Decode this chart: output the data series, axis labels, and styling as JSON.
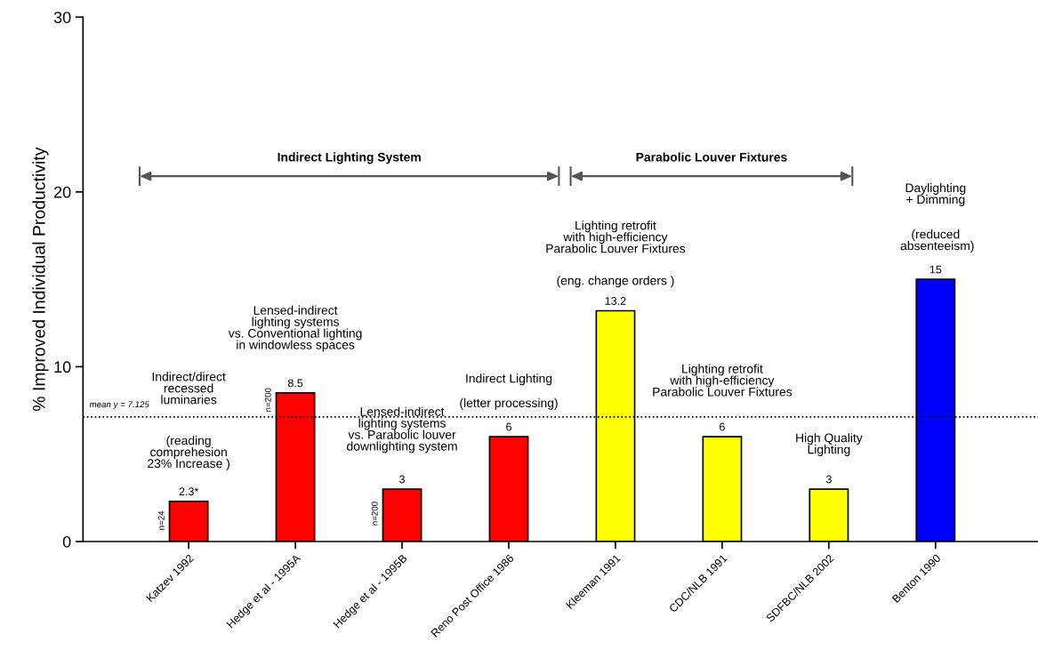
{
  "chart_data": {
    "type": "bar",
    "ylabel": "% Improved Individual Productivity",
    "categories": [
      "Katzev 1992",
      "Hedge et al - 1995A",
      "Hedge et al - 1995B",
      "Reno Post Office 1986",
      "Kleeman 1991",
      "CDC/NLB 1991",
      "SDFBC/NLB 2002",
      "Benton 1990"
    ],
    "values": [
      2.3,
      8.5,
      3,
      6,
      13.2,
      6,
      3,
      15
    ],
    "value_labels": [
      "2.3*",
      "8.5",
      "3",
      "6",
      "13.2",
      "6",
      "3",
      "15"
    ],
    "colors": [
      "#ff0000",
      "#ff0000",
      "#ff0000",
      "#ff0000",
      "#ffff00",
      "#ffff00",
      "#ffff00",
      "#0000ff"
    ],
    "ylim": [
      0,
      30
    ],
    "yticks": [
      0,
      10,
      20,
      30
    ],
    "ref_lines": [
      {
        "axis": "y",
        "value": 7.125,
        "label": "mean y = 7.125",
        "line_style": "dotted",
        "color": "#000000"
      }
    ],
    "annotations": [
      "Indirect Lighting System",
      "Parabolic Louver Fixtures",
      "Indirect/direct\nrecessed\nluminaries",
      "(reading\ncomprehesion\n23% Increase )",
      "n=24",
      "Lensed-indirect\nlighting systems\nvs. Conventional lighting\nin windowless spaces",
      "n=200",
      "Lensed-indirect\nlighting systems\nvs. Parabolic louver\ndownlighting system",
      "n=200",
      "Indirect Lighting",
      "(letter processing)",
      "Lighting retrofit\nwith high-efficiency\nParabolic Louver Fixtures",
      "(eng. change orders )",
      "Lighting retrofit\nwith high-efficiency\nParabolic Louver Fixtures",
      "High Quality\nLighting",
      "Daylighting\n+ Dimming",
      "(reduced\n absenteeism)"
    ]
  }
}
